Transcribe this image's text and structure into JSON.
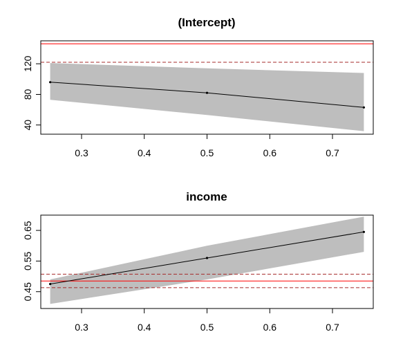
{
  "chart_data": [
    {
      "type": "line",
      "title": "(Intercept)",
      "xlabel": "",
      "ylabel": "",
      "xlim": [
        0.235,
        0.765
      ],
      "ylim": [
        28,
        150
      ],
      "x_ticks": [
        0.3,
        0.4,
        0.5,
        0.6,
        0.7
      ],
      "x_tick_labels": [
        "0.3",
        "0.4",
        "0.5",
        "0.6",
        "0.7"
      ],
      "y_ticks": [
        40,
        80,
        120
      ],
      "y_tick_labels": [
        "40",
        "80",
        "120"
      ],
      "grid": false,
      "series": [
        {
          "x": [
            0.25,
            0.5,
            0.75
          ],
          "y": [
            96,
            82,
            63
          ]
        }
      ],
      "band": {
        "x": [
          0.25,
          0.5,
          0.75
        ],
        "lower": [
          73,
          53,
          32
        ],
        "upper": [
          121,
          114,
          108
        ]
      },
      "reference_lines": [
        {
          "y": 146,
          "style": "solid",
          "color": "#ff0000"
        },
        {
          "y": 122,
          "style": "dashed",
          "color": "#a52a2a"
        }
      ],
      "colors": {
        "band": "#bebebe",
        "line": "#000000"
      }
    },
    {
      "type": "line",
      "title": "income",
      "xlabel": "",
      "ylabel": "",
      "xlim": [
        0.235,
        0.765
      ],
      "ylim": [
        0.395,
        0.7
      ],
      "x_ticks": [
        0.3,
        0.4,
        0.5,
        0.6,
        0.7
      ],
      "x_tick_labels": [
        "0.3",
        "0.4",
        "0.5",
        "0.6",
        "0.7"
      ],
      "y_ticks": [
        0.45,
        0.55,
        0.65
      ],
      "y_tick_labels": [
        "0.45",
        "0.55",
        "0.65"
      ],
      "grid": false,
      "series": [
        {
          "x": [
            0.25,
            0.5,
            0.75
          ],
          "y": [
            0.475,
            0.56,
            0.645
          ]
        }
      ],
      "band": {
        "x": [
          0.25,
          0.5,
          0.75
        ],
        "lower": [
          0.41,
          0.49,
          0.58
        ],
        "upper": [
          0.49,
          0.6,
          0.695
        ]
      },
      "reference_lines": [
        {
          "y": 0.485,
          "style": "solid",
          "color": "#ff0000"
        },
        {
          "y": 0.507,
          "style": "dashed",
          "color": "#a52a2a"
        },
        {
          "y": 0.463,
          "style": "dashed",
          "color": "#a52a2a"
        }
      ],
      "colors": {
        "band": "#bebebe",
        "line": "#000000"
      }
    }
  ]
}
